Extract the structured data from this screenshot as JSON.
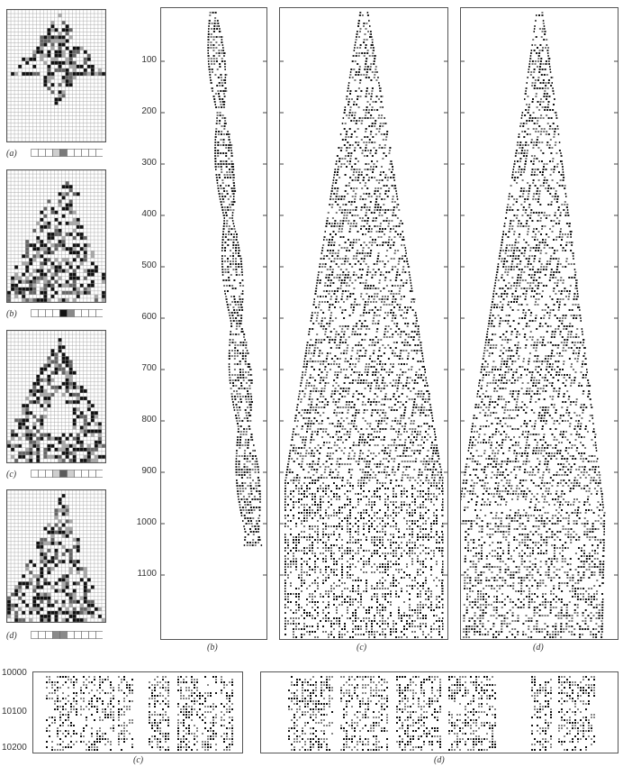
{
  "small_panels": [
    {
      "label": "(a)",
      "shape": "diamond",
      "colors": [
        "#ffffff",
        "#ffffff",
        "#ffffff",
        "#cfcfcf",
        "#7a7a7a",
        "#ffffff",
        "#ffffff",
        "#ffffff",
        "#ffffff",
        "#ffffff"
      ]
    },
    {
      "label": "(b)",
      "shape": "triangle",
      "colors": [
        "#ffffff",
        "#ffffff",
        "#ffffff",
        "#ffffff",
        "#111111",
        "#8a8a8a",
        "#ffffff",
        "#ffffff",
        "#ffffff",
        "#ffffff"
      ]
    },
    {
      "label": "(c)",
      "shape": "hollow",
      "colors": [
        "#ffffff",
        "#ffffff",
        "#ffffff",
        "#cfcfcf",
        "#5a5a5a",
        "#cfcfcf",
        "#ffffff",
        "#ffffff",
        "#ffffff",
        "#ffffff"
      ]
    },
    {
      "label": "(d)",
      "shape": "skew",
      "colors": [
        "#ffffff",
        "#ffffff",
        "#ffffff",
        "#8a8a8a",
        "#8a8a8a",
        "#ffffff",
        "#ffffff",
        "#ffffff",
        "#ffffff",
        "#ffffff"
      ]
    }
  ],
  "main_axis_ticks": [
    "100",
    "200",
    "300",
    "400",
    "500",
    "600",
    "700",
    "800",
    "900",
    "1000",
    "1100"
  ],
  "main_panels": [
    {
      "label": "(b)"
    },
    {
      "label": "(c)"
    },
    {
      "label": "(d)"
    }
  ],
  "bottom_axis_ticks": [
    "10000",
    "10100",
    "10200"
  ],
  "bottom_panels": [
    {
      "label": "(c)"
    },
    {
      "label": "(d)"
    }
  ]
}
